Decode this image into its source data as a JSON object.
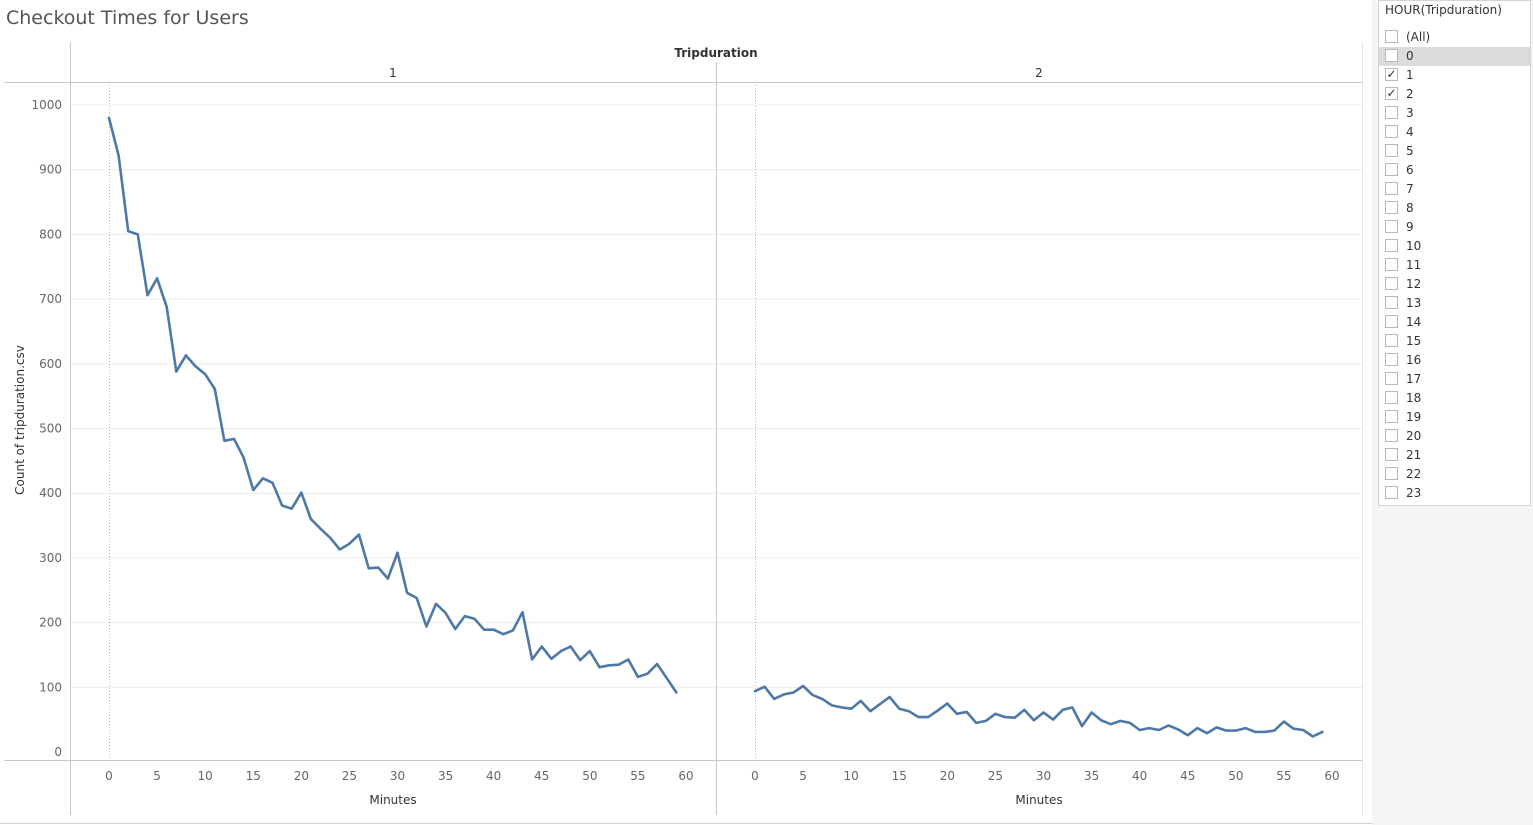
{
  "title": "Checkout Times for Users",
  "filter": {
    "title": "HOUR(Tripduration)",
    "items": [
      {
        "label": "(All)",
        "checked": false,
        "highlight": false
      },
      {
        "label": "0",
        "checked": false,
        "highlight": true
      },
      {
        "label": "1",
        "checked": true,
        "highlight": false
      },
      {
        "label": "2",
        "checked": true,
        "highlight": false
      },
      {
        "label": "3",
        "checked": false,
        "highlight": false
      },
      {
        "label": "4",
        "checked": false,
        "highlight": false
      },
      {
        "label": "5",
        "checked": false,
        "highlight": false
      },
      {
        "label": "6",
        "checked": false,
        "highlight": false
      },
      {
        "label": "7",
        "checked": false,
        "highlight": false
      },
      {
        "label": "8",
        "checked": false,
        "highlight": false
      },
      {
        "label": "9",
        "checked": false,
        "highlight": false
      },
      {
        "label": "10",
        "checked": false,
        "highlight": false
      },
      {
        "label": "11",
        "checked": false,
        "highlight": false
      },
      {
        "label": "12",
        "checked": false,
        "highlight": false
      },
      {
        "label": "13",
        "checked": false,
        "highlight": false
      },
      {
        "label": "14",
        "checked": false,
        "highlight": false
      },
      {
        "label": "15",
        "checked": false,
        "highlight": false
      },
      {
        "label": "16",
        "checked": false,
        "highlight": false
      },
      {
        "label": "17",
        "checked": false,
        "highlight": false
      },
      {
        "label": "18",
        "checked": false,
        "highlight": false
      },
      {
        "label": "19",
        "checked": false,
        "highlight": false
      },
      {
        "label": "20",
        "checked": false,
        "highlight": false
      },
      {
        "label": "21",
        "checked": false,
        "highlight": false
      },
      {
        "label": "22",
        "checked": false,
        "highlight": false
      },
      {
        "label": "23",
        "checked": false,
        "highlight": false
      }
    ]
  },
  "chart_data": {
    "type": "line",
    "column_header": "Tripduration",
    "ylabel": "Count of tripduration.csv",
    "xlabel": "Minutes",
    "ylim": [
      0,
      1000
    ],
    "yticks": [
      0,
      100,
      200,
      300,
      400,
      500,
      600,
      700,
      800,
      900,
      1000
    ],
    "xlim": [
      0,
      60
    ],
    "xticks": [
      0,
      5,
      10,
      15,
      20,
      25,
      30,
      35,
      40,
      45,
      50,
      55,
      60
    ],
    "line_color": "#4e79a7",
    "panels": [
      {
        "label": "1",
        "x": [
          0,
          1,
          2,
          3,
          4,
          5,
          6,
          7,
          8,
          9,
          10,
          11,
          12,
          13,
          14,
          15,
          16,
          17,
          18,
          19,
          20,
          21,
          22,
          23,
          24,
          25,
          26,
          27,
          28,
          29,
          30,
          31,
          32,
          33,
          34,
          35,
          36,
          37,
          38,
          39,
          40,
          41,
          42,
          43,
          44,
          45,
          46,
          47,
          48,
          49,
          50,
          51,
          52,
          53,
          54,
          55,
          56,
          57,
          58,
          59
        ],
        "values": [
          980,
          922,
          805,
          800,
          706,
          732,
          688,
          588,
          613,
          596,
          584,
          561,
          481,
          484,
          455,
          405,
          423,
          416,
          381,
          376,
          401,
          360,
          345,
          331,
          313,
          322,
          336,
          284,
          285,
          268,
          308,
          246,
          238,
          194,
          229,
          215,
          190,
          210,
          206,
          189,
          189,
          182,
          188,
          216,
          143,
          163,
          144,
          156,
          163,
          142,
          156,
          131,
          134,
          135,
          143,
          116,
          121,
          136,
          114,
          92
        ]
      },
      {
        "label": "2",
        "x": [
          0,
          1,
          2,
          3,
          4,
          5,
          6,
          7,
          8,
          9,
          10,
          11,
          12,
          13,
          14,
          15,
          16,
          17,
          18,
          19,
          20,
          21,
          22,
          23,
          24,
          25,
          26,
          27,
          28,
          29,
          30,
          31,
          32,
          33,
          34,
          35,
          36,
          37,
          38,
          39,
          40,
          41,
          42,
          43,
          44,
          45,
          46,
          47,
          48,
          49,
          50,
          51,
          52,
          53,
          54,
          55,
          56,
          57,
          58,
          59
        ],
        "values": [
          94,
          101,
          82,
          89,
          92,
          102,
          88,
          82,
          72,
          69,
          67,
          79,
          63,
          74,
          85,
          67,
          63,
          54,
          54,
          64,
          75,
          59,
          62,
          45,
          48,
          59,
          54,
          53,
          65,
          49,
          61,
          50,
          65,
          69,
          40,
          61,
          49,
          43,
          48,
          45,
          34,
          37,
          34,
          41,
          35,
          26,
          37,
          29,
          38,
          33,
          33,
          37,
          31,
          31,
          33,
          47,
          36,
          34,
          24,
          31
        ]
      }
    ]
  }
}
